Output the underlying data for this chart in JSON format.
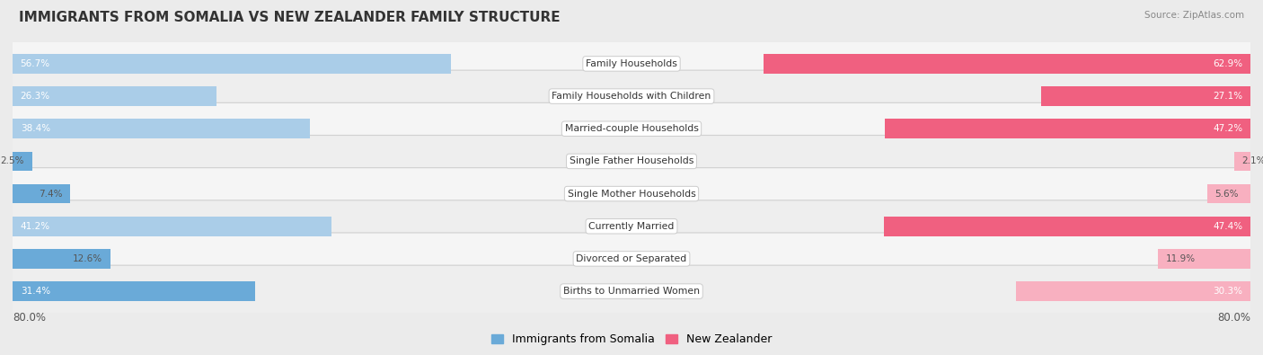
{
  "title": "IMMIGRANTS FROM SOMALIA VS NEW ZEALANDER FAMILY STRUCTURE",
  "source": "Source: ZipAtlas.com",
  "categories": [
    "Family Households",
    "Family Households with Children",
    "Married-couple Households",
    "Single Father Households",
    "Single Mother Households",
    "Currently Married",
    "Divorced or Separated",
    "Births to Unmarried Women"
  ],
  "somalia_values": [
    56.7,
    26.3,
    38.4,
    2.5,
    7.4,
    41.2,
    12.6,
    31.4
  ],
  "nz_values": [
    62.9,
    27.1,
    47.2,
    2.1,
    5.6,
    47.4,
    11.9,
    30.3
  ],
  "somalia_color_strong": "#6aaad8",
  "somalia_color_light": "#aacde8",
  "nz_color_strong": "#f06080",
  "nz_color_light": "#f8b0c0",
  "axis_max": 80.0,
  "axis_label_left": "80.0%",
  "axis_label_right": "80.0%",
  "background_color": "#ebebeb",
  "row_background_odd": "#f5f5f5",
  "row_background_even": "#eeeeee",
  "label_box_color": "#ffffff",
  "legend_somalia": "Immigrants from Somalia",
  "legend_nz": "New Zealander"
}
